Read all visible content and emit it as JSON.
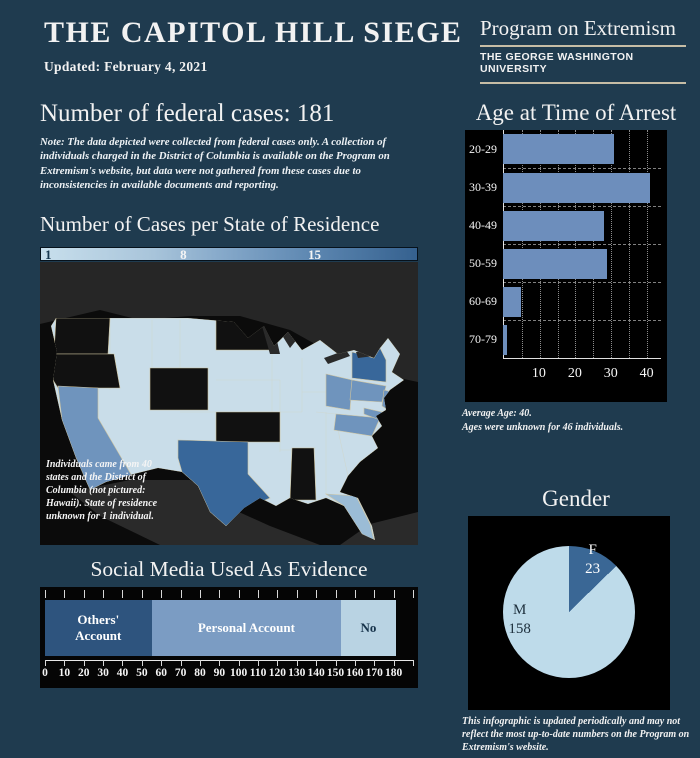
{
  "header": {
    "title": "THE CAPITOL HILL SIEGE",
    "updated": "Updated: February 4, 2021",
    "brand_program": "Program on Extremism",
    "brand_university": "THE GEORGE WASHINGTON UNIVERSITY"
  },
  "federal_cases": {
    "headline": "Number of federal cases: 181",
    "note": "Note: The data depicted were collected from federal cases only. A collection of individuals charged in the District of Columbia is available on the Program on Extremism's website, but data were not gathered from these cases due to inconsistencies in available documents and reporting."
  },
  "map_section": {
    "title": "Number of Cases per State of Residence",
    "legend_labels": [
      "1",
      "8",
      "15"
    ],
    "annotation": "Individuals came from 40 states and the District of Columbia (not pictured: Hawaii). State of residence unknown for 1 individual."
  },
  "age_section": {
    "title": "Age at Time of Arrest",
    "notes": [
      "Average Age: 40.",
      "Ages were unknown for 46 individuals."
    ]
  },
  "social_section": {
    "title": "Social Media Used As Evidence"
  },
  "gender_section": {
    "title": "Gender"
  },
  "footer_note": "This infographic is updated periodically and may not reflect the most up-to-date numbers on the Program on Extremism's website.",
  "colors": {
    "background": "#1f3b4f",
    "panel": "#000000",
    "accent_line": "#c6bda6",
    "bar_blue": "#6d8ebc"
  },
  "chart_data": [
    {
      "id": "age_at_arrest",
      "type": "bar",
      "orientation": "horizontal",
      "title": "Age at Time of Arrest",
      "categories": [
        "20-29",
        "30-39",
        "40-49",
        "50-59",
        "60-69",
        "70-79"
      ],
      "values": [
        31,
        41,
        28,
        29,
        5,
        1
      ],
      "xlim": [
        0,
        44
      ],
      "xticks": [
        10,
        20,
        30,
        40
      ],
      "grid_step": 5,
      "grid": "dotted vertical",
      "bar_color": "#6d8ebc",
      "bg": "#000000",
      "notes": [
        "Average Age: 40.",
        "Ages were unknown for 46 individuals."
      ]
    },
    {
      "id": "social_media",
      "type": "bar",
      "subtype": "stacked",
      "orientation": "horizontal",
      "title": "Social Media Used As Evidence",
      "total": 181,
      "xlim": [
        0,
        190
      ],
      "xticks": [
        0,
        10,
        20,
        30,
        40,
        50,
        60,
        70,
        80,
        90,
        100,
        110,
        120,
        130,
        140,
        150,
        160,
        170,
        180
      ],
      "segments": [
        {
          "label": "Others' Account",
          "value": 55,
          "color": "#2e547e",
          "label_color": "#ffffff"
        },
        {
          "label": "Personal Account",
          "value": 98,
          "color": "#7b9cc3",
          "label_color": "#ffffff"
        },
        {
          "label": "No",
          "value": 28,
          "color": "#b9d3e3",
          "label_color": "#16324a"
        }
      ],
      "bg": "#000000"
    },
    {
      "id": "gender",
      "type": "pie",
      "title": "Gender",
      "slices": [
        {
          "label": "F",
          "value": 23,
          "color": "#3a6795",
          "label_color": "#ffffff"
        },
        {
          "label": "M",
          "value": 158,
          "color": "#bedbea",
          "label_color": "#1d2f3c"
        }
      ],
      "start_angle_deg": 0,
      "direction": "clockwise",
      "bg": "#000000"
    },
    {
      "id": "state_map",
      "type": "choropleth",
      "title": "Number of Cases per State of Residence",
      "legend_stops": [
        1,
        8,
        15
      ],
      "colors": {
        "none": "#111111",
        "low": "#c9dde9",
        "medium": "#6f94bd",
        "medium_low": "#9bbcd6",
        "high": "#38679a"
      },
      "levels": {
        "none": [
          "Washington",
          "Oregon",
          "Wyoming",
          "North Dakota",
          "Kansas",
          "Mississippi"
        ],
        "high": [
          "Texas",
          "New York"
        ],
        "medium": [
          "California",
          "Ohio",
          "Pennsylvania",
          "Virginia",
          "New Jersey",
          "Maryland"
        ],
        "medium_low": [
          "Florida"
        ],
        "low": [
          "all other pictured states"
        ]
      }
    }
  ]
}
